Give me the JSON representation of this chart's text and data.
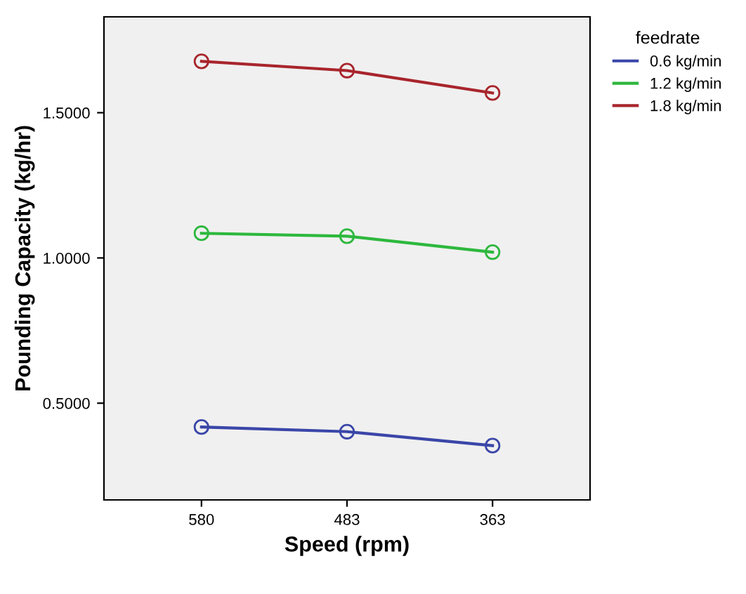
{
  "chart_data": {
    "type": "line",
    "xlabel": "Speed (rpm)",
    "ylabel": "Pounding Capacity (kg/hr)",
    "legend_title": "feedrate",
    "legend": "top right",
    "marker": "circle",
    "line_style": "solid",
    "grid": false,
    "categories": [
      "580",
      "483",
      "363"
    ],
    "ylim": [
      0.167,
      1.83
    ],
    "yticks": [
      {
        "value": 0.5,
        "label": "0.5000"
      },
      {
        "value": 1.0,
        "label": "1.0000"
      },
      {
        "value": 1.5,
        "label": "1.5000"
      }
    ],
    "series": [
      {
        "name": "0.6 kg/min",
        "color": "#3a46a8",
        "values": [
          0.418,
          0.402,
          0.354
        ]
      },
      {
        "name": "1.2 kg/min",
        "color": "#2db83d",
        "values": [
          1.085,
          1.075,
          1.02
        ]
      },
      {
        "name": "1.8 kg/min",
        "color": "#a8252c",
        "values": [
          1.677,
          1.645,
          1.568
        ]
      }
    ]
  }
}
